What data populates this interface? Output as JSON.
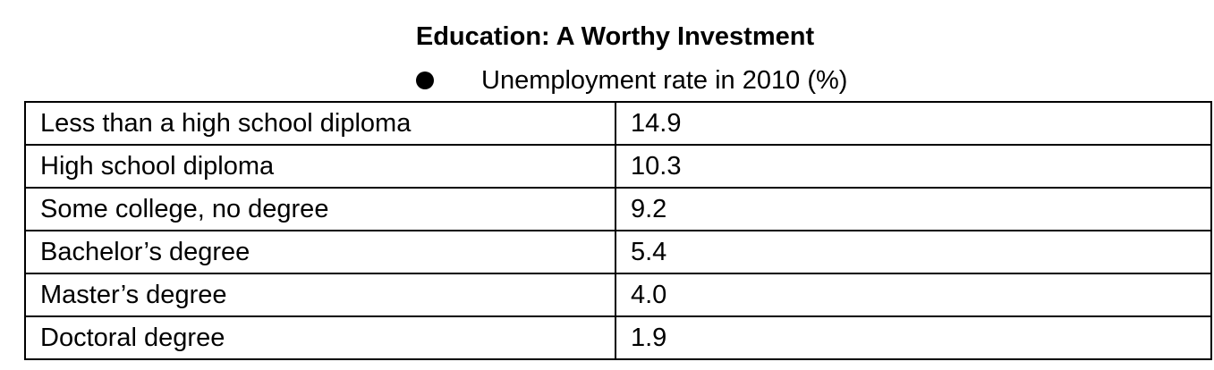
{
  "title": "Education: A Worthy Investment",
  "subtitle": "Unemployment rate in 2010 (%)",
  "bullet_icon": "filled-circle",
  "table": {
    "rows": [
      {
        "label": "Less than a high school diploma",
        "value": "14.9"
      },
      {
        "label": "High school diploma",
        "value": "10.3"
      },
      {
        "label": "Some college, no degree",
        "value": "9.2"
      },
      {
        "label": "Bachelor’s degree",
        "value": "5.4"
      },
      {
        "label": "Master’s degree",
        "value": "4.0"
      },
      {
        "label": "Doctoral degree",
        "value": "1.9"
      }
    ]
  }
}
